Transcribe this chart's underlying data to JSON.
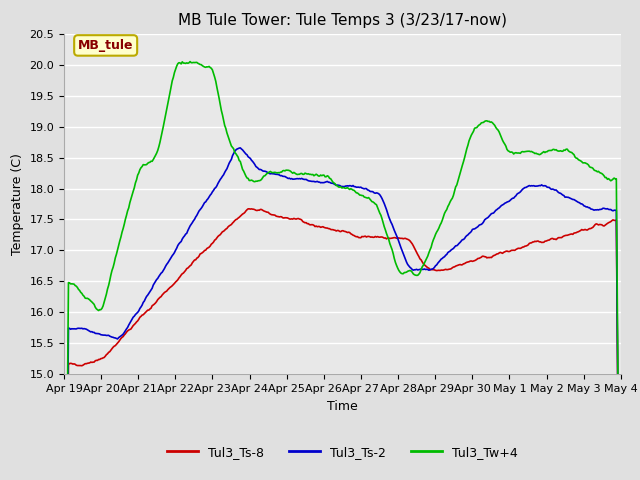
{
  "title": "MB Tule Tower: Tule Temps 3 (3/23/17-now)",
  "xlabel": "Time",
  "ylabel": "Temperature (C)",
  "ylim": [
    15.0,
    20.5
  ],
  "yticks": [
    15.0,
    15.5,
    16.0,
    16.5,
    17.0,
    17.5,
    18.0,
    18.5,
    19.0,
    19.5,
    20.0,
    20.5
  ],
  "xtick_labels": [
    "Apr 19",
    "Apr 20",
    "Apr 21",
    "Apr 22",
    "Apr 23",
    "Apr 24",
    "Apr 25",
    "Apr 26",
    "Apr 27",
    "Apr 28",
    "Apr 29",
    "Apr 30",
    "May 1",
    "May 2",
    "May 3",
    "May 4"
  ],
  "bg_color": "#e0e0e0",
  "plot_bg": "#e8e8e8",
  "grid_color": "#ffffff",
  "legend_label": "MB_tule",
  "legend_bg": "#ffffcc",
  "legend_border": "#bbaa00",
  "legend_text_color": "#880000",
  "series_labels": [
    "Tul3_Ts-8",
    "Tul3_Ts-2",
    "Tul3_Tw+4"
  ],
  "series_colors": [
    "#cc0000",
    "#0000cc",
    "#00bb00"
  ],
  "line_width": 1.2,
  "title_fontsize": 11,
  "label_fontsize": 9,
  "tick_fontsize": 8,
  "n_points": 500
}
